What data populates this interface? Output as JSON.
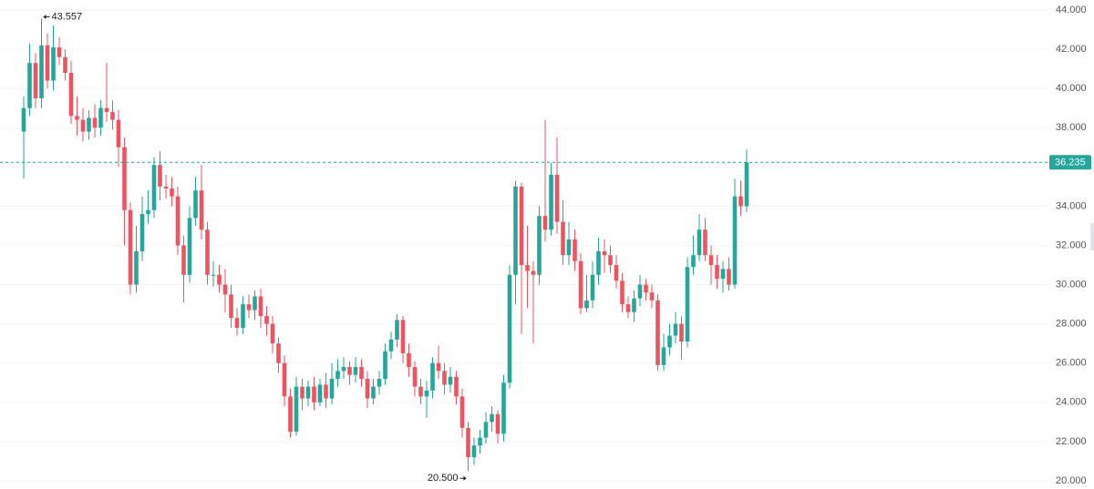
{
  "chart_data": {
    "type": "candlestick",
    "up_color": "#26a69a",
    "down_color": "#ef5360",
    "ylim": [
      20,
      44
    ],
    "yticks": [
      {
        "value": 20,
        "label": "20.000"
      },
      {
        "value": 22,
        "label": "22.000"
      },
      {
        "value": 24,
        "label": "24.000"
      },
      {
        "value": 26,
        "label": "26.000"
      },
      {
        "value": 28,
        "label": "28.000"
      },
      {
        "value": 30,
        "label": "30.000"
      },
      {
        "value": 32,
        "label": "32.000"
      },
      {
        "value": 34,
        "label": "34.000"
      },
      {
        "value": 36,
        "label": "36.000"
      },
      {
        "value": 38,
        "label": "38.000"
      },
      {
        "value": 40,
        "label": "40.000"
      },
      {
        "value": 42,
        "label": "42.000"
      },
      {
        "value": 44,
        "label": "44.000"
      }
    ],
    "grid": true,
    "open": [
      37.8,
      39.0,
      41.3,
      39.5,
      42.2,
      40.4,
      42.1,
      41.6,
      40.8,
      38.6,
      38.4,
      37.8,
      38.5,
      38.0,
      39.0,
      38.8,
      38.4,
      37.0,
      33.8,
      30.0,
      31.7,
      33.6,
      33.8,
      36.1,
      35.0,
      34.9,
      34.5,
      32.0,
      30.5,
      33.4,
      34.8,
      32.8,
      30.5,
      30.5,
      30.0,
      29.5,
      28.3,
      27.8,
      29.0,
      28.7,
      29.4,
      28.4,
      28.0,
      27.0,
      26.0,
      24.3,
      22.5,
      24.8,
      24.2,
      24.8,
      24.0,
      24.9,
      24.2,
      25.2,
      25.6,
      25.8,
      25.4,
      25.8,
      25.2,
      24.2,
      24.8,
      25.2,
      26.6,
      27.2,
      28.2,
      26.5,
      25.8,
      24.8,
      24.3,
      24.6,
      26.0,
      25.6,
      24.9,
      25.3,
      24.3,
      22.7,
      21.2,
      21.8,
      22.2,
      23.0,
      23.4,
      22.4,
      25.0,
      30.5,
      35.0,
      31.0,
      30.7,
      30.5,
      33.5,
      32.8,
      35.6,
      33.2,
      31.5,
      32.3,
      31.2,
      28.8,
      29.2,
      30.5,
      31.7,
      31.5,
      31.0,
      30.2,
      29.0,
      28.6,
      29.3,
      30.0,
      29.6,
      29.2,
      25.9,
      26.8,
      27.4,
      28.0,
      27.1,
      30.9,
      31.5,
      32.8,
      31.5,
      31.0,
      30.3,
      30.8,
      30.0,
      34.5,
      34.0
    ],
    "high": [
      39.6,
      42.3,
      41.8,
      43.557,
      42.8,
      43.2,
      42.6,
      42.0,
      41.4,
      39.6,
      39.0,
      38.9,
      39.2,
      39.4,
      41.3,
      39.4,
      38.9,
      37.5,
      34.2,
      33.0,
      34.5,
      34.8,
      36.5,
      36.8,
      35.6,
      35.5,
      35.0,
      32.5,
      34.0,
      35.5,
      36.1,
      33.2,
      31.2,
      31.0,
      30.8,
      30.0,
      28.8,
      29.4,
      29.5,
      29.7,
      29.8,
      28.9,
      28.4,
      27.3,
      26.4,
      24.7,
      25.3,
      25.2,
      25.1,
      25.3,
      25.2,
      25.5,
      26.0,
      26.2,
      26.3,
      26.1,
      26.3,
      26.2,
      25.6,
      25.2,
      25.6,
      27.0,
      27.6,
      28.5,
      28.4,
      27.0,
      26.1,
      25.2,
      25.1,
      26.3,
      26.9,
      26.0,
      25.8,
      25.6,
      24.7,
      23.0,
      22.2,
      22.6,
      23.5,
      23.8,
      23.6,
      25.4,
      31.0,
      35.3,
      35.2,
      33.0,
      31.2,
      34.0,
      38.4,
      36.2,
      37.5,
      34.3,
      33.2,
      32.8,
      31.6,
      30.5,
      31.2,
      32.4,
      32.3,
      32.0,
      31.5,
      30.6,
      29.4,
      29.7,
      30.5,
      30.3,
      30.0,
      29.5,
      27.5,
      28.0,
      28.6,
      28.4,
      31.4,
      32.5,
      33.6,
      33.4,
      32.0,
      31.5,
      31.2,
      31.4,
      35.4,
      35.3,
      36.9
    ],
    "low": [
      35.4,
      38.6,
      39.0,
      39.0,
      40.0,
      39.9,
      41.2,
      40.4,
      38.2,
      37.6,
      37.3,
      37.4,
      37.5,
      37.6,
      38.3,
      37.9,
      36.0,
      32.0,
      29.5,
      29.6,
      31.2,
      33.1,
      33.4,
      34.3,
      34.4,
      34.0,
      31.5,
      29.1,
      30.1,
      33.0,
      32.3,
      30.0,
      29.9,
      29.6,
      28.6,
      27.8,
      27.4,
      27.5,
      28.3,
      28.2,
      27.8,
      27.4,
      26.5,
      25.5,
      23.8,
      22.2,
      22.3,
      23.6,
      23.8,
      23.6,
      23.8,
      23.7,
      23.9,
      24.8,
      25.2,
      24.9,
      25.0,
      24.8,
      23.7,
      23.9,
      24.4,
      24.9,
      26.2,
      26.8,
      26.0,
      25.3,
      24.3,
      23.9,
      23.2,
      24.2,
      25.2,
      24.4,
      24.5,
      23.9,
      22.2,
      20.5,
      20.8,
      21.4,
      21.9,
      22.5,
      21.9,
      22.0,
      24.7,
      29.0,
      27.5,
      28.8,
      27.0,
      30.0,
      32.2,
      32.5,
      32.6,
      31.0,
      31.0,
      30.7,
      28.5,
      28.6,
      28.8,
      30.0,
      30.6,
      30.6,
      29.8,
      28.6,
      28.3,
      28.1,
      28.9,
      29.2,
      28.8,
      25.6,
      25.6,
      26.4,
      27.0,
      26.2,
      26.8,
      30.5,
      31.2,
      31.2,
      30.0,
      29.8,
      29.6,
      29.7,
      29.8,
      33.5,
      33.7
    ],
    "close": [
      39.0,
      41.3,
      39.5,
      42.2,
      40.4,
      42.1,
      41.6,
      40.8,
      38.6,
      38.4,
      37.8,
      38.5,
      38.0,
      39.0,
      38.8,
      38.4,
      37.0,
      33.8,
      30.0,
      31.7,
      33.6,
      33.8,
      36.1,
      35.0,
      34.9,
      34.5,
      32.0,
      30.5,
      33.4,
      34.8,
      32.8,
      30.5,
      30.5,
      30.0,
      29.5,
      28.3,
      27.8,
      29.0,
      28.7,
      29.4,
      28.4,
      28.0,
      27.0,
      26.0,
      24.3,
      22.5,
      24.8,
      24.2,
      24.8,
      24.0,
      24.9,
      24.2,
      25.2,
      25.6,
      25.8,
      25.4,
      25.8,
      25.2,
      24.2,
      24.8,
      25.2,
      26.6,
      27.2,
      28.2,
      26.5,
      25.8,
      24.8,
      24.3,
      24.6,
      26.0,
      25.6,
      24.9,
      25.3,
      24.3,
      22.7,
      21.2,
      21.8,
      22.2,
      23.0,
      23.4,
      22.4,
      25.0,
      30.5,
      35.0,
      31.0,
      30.7,
      30.5,
      33.5,
      32.8,
      35.6,
      33.2,
      31.5,
      32.3,
      31.2,
      28.8,
      29.2,
      30.5,
      31.7,
      31.5,
      31.0,
      30.2,
      29.0,
      28.6,
      29.3,
      30.0,
      29.6,
      29.2,
      25.9,
      26.8,
      27.4,
      28.0,
      27.1,
      30.9,
      31.5,
      32.8,
      31.5,
      31.0,
      30.3,
      30.8,
      30.0,
      34.5,
      34.0,
      36.235
    ],
    "max_marker": {
      "value": 43.557,
      "label": "43.557"
    },
    "min_marker": {
      "value": 20.5,
      "label": "20.500"
    },
    "last_price": {
      "value": 36.235,
      "label": "36.235"
    }
  }
}
